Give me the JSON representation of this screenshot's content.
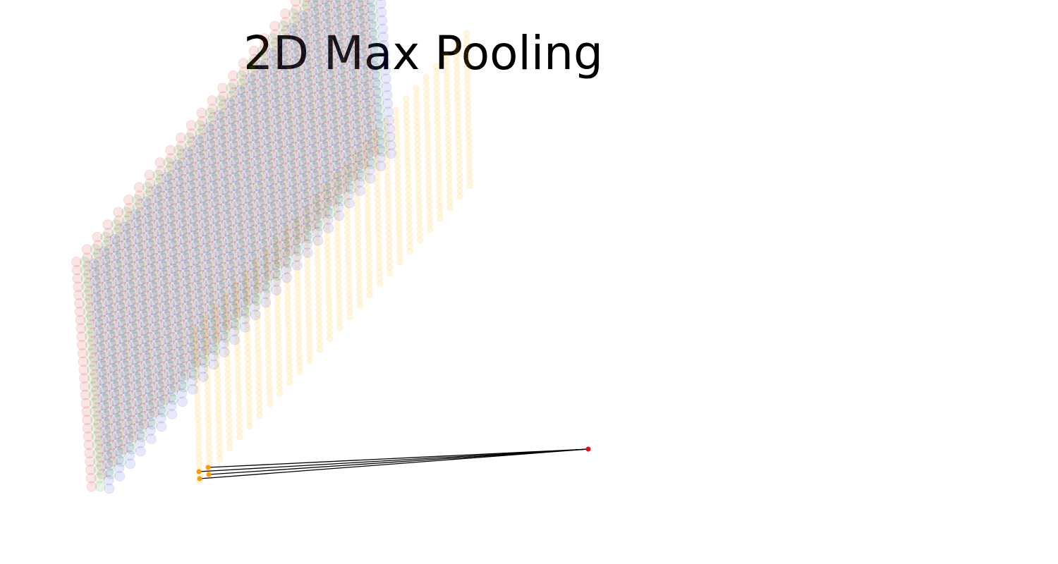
{
  "figure": {
    "title": "2D Max Pooling"
  },
  "diagram": {
    "input_channels": [
      {
        "name": "red",
        "color": "#d62728",
        "opacity": 0.12
      },
      {
        "name": "green",
        "color": "#2ca02c",
        "opacity": 0.12
      },
      {
        "name": "blue",
        "color": "#1f1fd6",
        "opacity": 0.1
      }
    ],
    "input_grid": {
      "rows": 28,
      "cols": 28
    },
    "pooled_grid": {
      "rows": 28,
      "cols": 28,
      "color": "#ffb300",
      "opacity": 0.12
    },
    "pool_window_color": "#ff9900",
    "output_neuron_color": "#e01010",
    "connection_color": "#000000"
  }
}
